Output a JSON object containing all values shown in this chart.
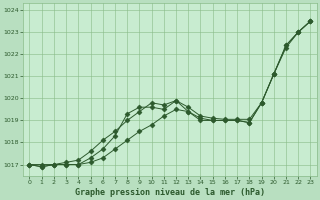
{
  "background_color": "#b8dfc0",
  "plot_bg_color": "#c8ecd0",
  "grid_color": "#88bb88",
  "line_color": "#2d5a2d",
  "title": "Graphe pression niveau de la mer (hPa)",
  "xlim": [
    -0.5,
    23.5
  ],
  "ylim": [
    1016.5,
    1024.3
  ],
  "yticks": [
    1017,
    1018,
    1019,
    1020,
    1021,
    1022,
    1023,
    1024
  ],
  "xticks": [
    0,
    1,
    2,
    3,
    4,
    5,
    6,
    7,
    8,
    9,
    10,
    11,
    12,
    13,
    14,
    15,
    16,
    17,
    18,
    19,
    20,
    21,
    22,
    23
  ],
  "series": [
    {
      "y": [
        1017.0,
        1016.9,
        1017.0,
        1017.0,
        1017.0,
        1017.3,
        1017.7,
        1018.3,
        1019.3,
        1019.6,
        1019.6,
        1019.5,
        1019.9,
        1019.4,
        1019.0,
        1019.0,
        1019.0,
        1019.0,
        1018.9,
        1019.8,
        1021.1,
        1022.4,
        1023.0,
        1023.5
      ],
      "marker": "D",
      "markersize": 2.5
    },
    {
      "y": [
        1017.0,
        1016.9,
        1017.0,
        1017.0,
        1017.0,
        1017.1,
        1017.3,
        1017.7,
        1018.1,
        1018.5,
        1018.8,
        1019.2,
        1019.5,
        1019.4,
        1019.1,
        1019.0,
        1019.0,
        1019.0,
        1018.9,
        1019.8,
        1021.1,
        1022.3,
        1023.0,
        1023.5
      ],
      "marker": "D",
      "markersize": 2.5
    },
    {
      "y": [
        1017.0,
        1017.0,
        1017.0,
        1017.1,
        1017.2,
        1017.6,
        1018.1,
        1018.5,
        1019.0,
        1019.4,
        1019.8,
        1019.7,
        1019.9,
        1019.6,
        1019.2,
        1019.1,
        1019.05,
        1019.05,
        1019.05,
        1019.8,
        1021.1,
        1022.4,
        1023.0,
        1023.5
      ],
      "marker": "D",
      "markersize": 2.5
    }
  ]
}
